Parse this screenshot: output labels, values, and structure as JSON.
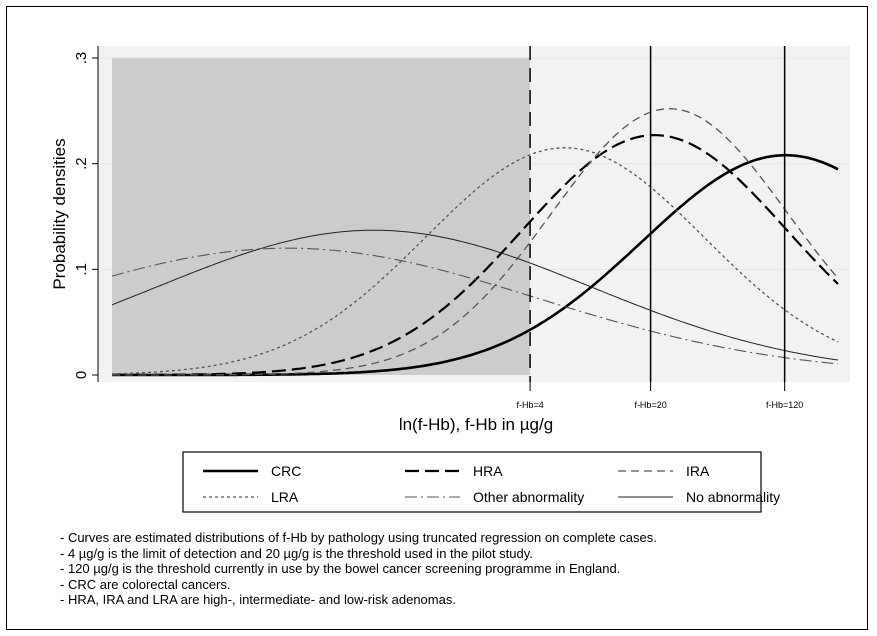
{
  "chart_data": {
    "type": "line",
    "title": "",
    "xlabel": "ln(f-Hb), f-Hb in µg/g",
    "ylabel": "Probability densities",
    "x_domain": [
      -4.2,
      5.5
    ],
    "ylim": [
      0,
      0.3
    ],
    "yticks": [
      0,
      0.1,
      0.2,
      0.3
    ],
    "ytick_labels": [
      "0",
      ".1",
      ".2",
      ".3"
    ],
    "grid": true,
    "legend_position": "bottom",
    "shaded_region": {
      "from": -4.2,
      "to": 1.386,
      "color": "#cccccc"
    },
    "reference_lines": [
      {
        "x": 1.386,
        "label": "f-Hb=4",
        "style": "dashed"
      },
      {
        "x": 2.996,
        "label": "f-Hb=20",
        "style": "solid"
      },
      {
        "x": 4.787,
        "label": "f-Hb=120",
        "style": "solid"
      }
    ],
    "series": [
      {
        "name": "CRC",
        "mu": 4.8,
        "peak": 0.208,
        "sigma": 1.92,
        "color": "#000000",
        "width": 2.6,
        "dash": ""
      },
      {
        "name": "HRA",
        "mu": 3.05,
        "peak": 0.227,
        "sigma": 1.76,
        "color": "#000000",
        "width": 2.2,
        "dash": "14 6"
      },
      {
        "name": "IRA",
        "mu": 3.25,
        "peak": 0.252,
        "sigma": 1.58,
        "color": "#555555",
        "width": 1.3,
        "dash": "8 5"
      },
      {
        "name": "LRA",
        "mu": 1.85,
        "peak": 0.215,
        "sigma": 1.86,
        "color": "#555555",
        "width": 1.3,
        "dash": "3 3"
      },
      {
        "name": "Other abnormality",
        "mu": -1.85,
        "peak": 0.12,
        "sigma": 3.33,
        "color": "#555555",
        "width": 1.1,
        "dash": "12 4 2 4"
      },
      {
        "name": "No abnormality",
        "mu": -0.7,
        "peak": 0.137,
        "sigma": 2.91,
        "color": "#222222",
        "width": 1.0,
        "dash": ""
      }
    ]
  },
  "notes": [
    "- Curves are estimated distributions of f-Hb by pathology using truncated regression on complete cases.",
    "- 4 µg/g is the limit of detection and 20 µg/g is the threshold used in the pilot study.",
    "- 120 µg/g is the threshold currently in use by the bowel cancer screening programme in England.",
    "- CRC are colorectal cancers.",
    "- HRA, IRA and LRA are high-, intermediate- and low-risk adenomas."
  ]
}
